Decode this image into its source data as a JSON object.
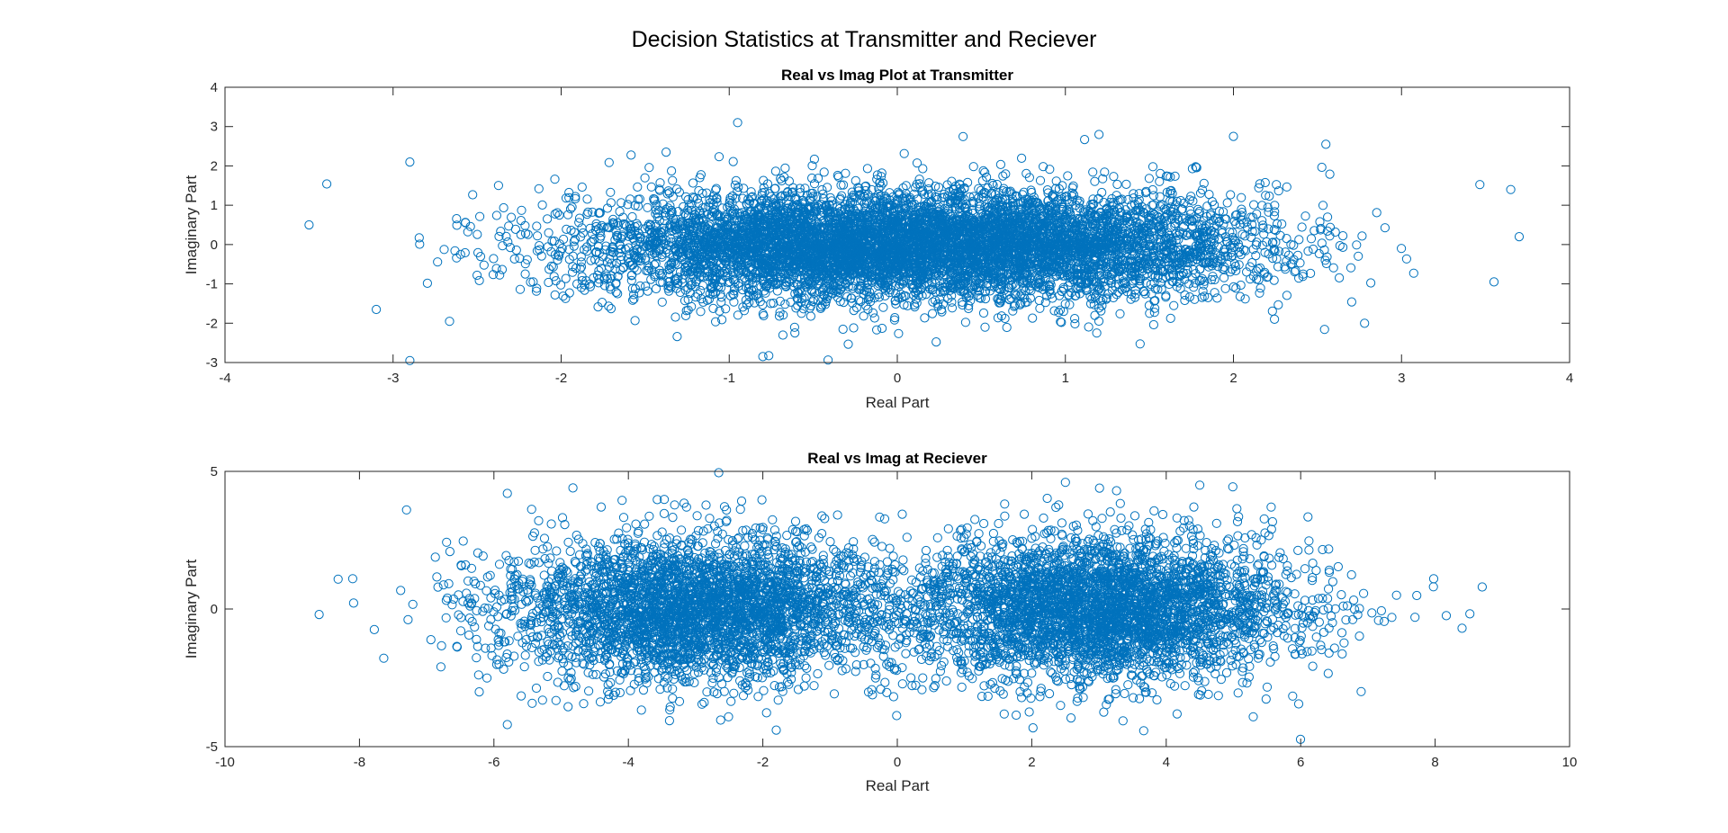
{
  "figure": {
    "title": "Decision Statistics at Transmitter and Reciever"
  },
  "colors": {
    "marker": "#0072BD",
    "axis": "#262626",
    "text": "#000000"
  },
  "chart_data": [
    {
      "type": "scatter",
      "title": "Real vs Imag Plot at Transmitter",
      "xlabel": "Real Part",
      "ylabel": "Imaginary Part",
      "xlim": [
        -4,
        4
      ],
      "ylim": [
        -3,
        4
      ],
      "xticks": [
        "-4",
        "-3",
        "-2",
        "-1",
        "0",
        "1",
        "2",
        "3",
        "4"
      ],
      "yticks": [
        "-3",
        "-2",
        "-1",
        "0",
        "1",
        "2",
        "3",
        "4"
      ],
      "grid": false,
      "marker": "open-circle",
      "distribution": {
        "description_of_points": "mixture of two gaussian clusters",
        "clusters": [
          {
            "center": [
              -0.5,
              0
            ],
            "std": [
              0.75,
              0.7
            ],
            "weight": 0.5
          },
          {
            "center": [
              0.75,
              0
            ],
            "std": [
              0.75,
              0.7
            ],
            "weight": 0.5
          }
        ],
        "n_points": 10000,
        "n_drawn": 7000
      },
      "notable_points": [
        [
          -2.9,
          -2.95
        ],
        [
          -0.95,
          3.1
        ],
        [
          -0.8,
          -2.85
        ],
        [
          -3.5,
          0.5
        ],
        [
          3.7,
          0.2
        ],
        [
          3.55,
          -0.95
        ],
        [
          2.55,
          2.55
        ],
        [
          1.2,
          2.8
        ],
        [
          2.0,
          2.75
        ],
        [
          -2.9,
          2.1
        ],
        [
          3.65,
          1.4
        ],
        [
          -3.1,
          -1.65
        ]
      ]
    },
    {
      "type": "scatter",
      "title": "Real vs Imag at Reciever",
      "xlabel": "Real Part",
      "ylabel": "Imaginary Part",
      "xlim": [
        -10,
        10
      ],
      "ylim": [
        -5,
        5
      ],
      "xticks": [
        "-10",
        "-8",
        "-6",
        "-4",
        "-2",
        "0",
        "2",
        "4",
        "6",
        "8",
        "10"
      ],
      "yticks": [
        "-5",
        "0",
        "5"
      ],
      "grid": false,
      "marker": "open-circle",
      "distribution": {
        "description_of_points": "mixture of two gaussian clusters",
        "clusters": [
          {
            "center": [
              -3.0,
              0
            ],
            "std": [
              1.45,
              1.3
            ],
            "weight": 0.5
          },
          {
            "center": [
              3.0,
              0
            ],
            "std": [
              1.45,
              1.3
            ],
            "weight": 0.5
          }
        ],
        "n_points": 10000,
        "n_drawn": 7000
      },
      "notable_points": [
        [
          -8.6,
          -0.2
        ],
        [
          8.7,
          0.8
        ],
        [
          8.4,
          -0.7
        ],
        [
          -5.8,
          -4.2
        ],
        [
          2.5,
          4.6
        ],
        [
          4.5,
          4.5
        ],
        [
          -1.8,
          -4.4
        ],
        [
          -5.8,
          4.2
        ],
        [
          -7.3,
          3.6
        ],
        [
          7.7,
          -0.3
        ],
        [
          -8.1,
          1.1
        ],
        [
          6.9,
          -3.0
        ]
      ]
    }
  ]
}
